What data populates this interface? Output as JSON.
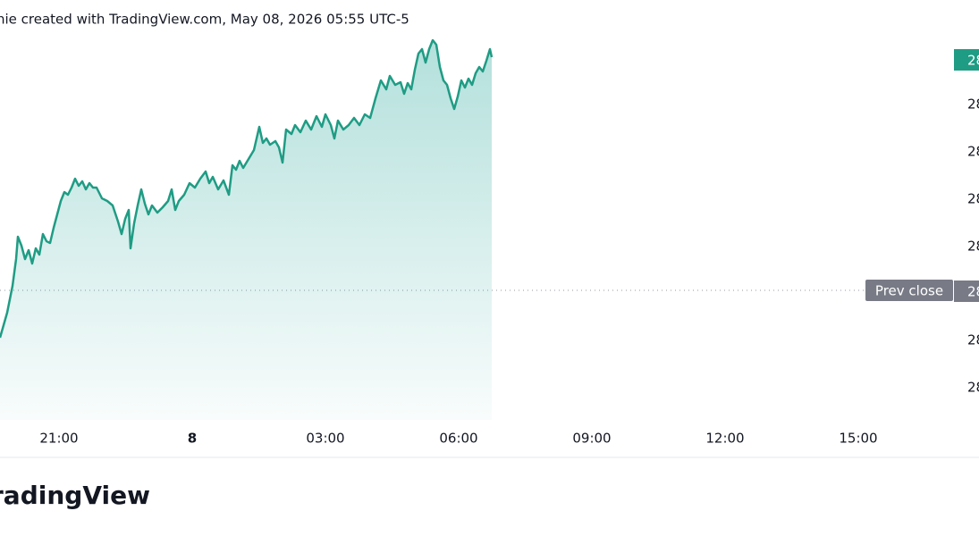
{
  "chart_data": {
    "type": "area",
    "title": "nie created with TradingView.com, May 08, 2026 05:55 UTC-5",
    "color": "#1f9c84",
    "xlim": [
      0,
      1065
    ],
    "ylim": [
      0,
      430
    ],
    "xticks": [
      {
        "value": 66,
        "label": "21:00"
      },
      {
        "value": 215,
        "label": "8"
      },
      {
        "value": 364,
        "label": "03:00"
      },
      {
        "value": 513,
        "label": "06:00"
      },
      {
        "value": 662,
        "label": "09:00"
      },
      {
        "value": 811,
        "label": "12:00"
      },
      {
        "value": 960,
        "label": "15:00"
      }
    ],
    "y_axis_labels": [
      "28",
      "28",
      "28",
      "28",
      "28",
      "28",
      "28",
      "28"
    ],
    "prev_close": {
      "label": "Prev close",
      "value": 145
    },
    "x": [
      0,
      8,
      14,
      18,
      20,
      24,
      28,
      32,
      36,
      40,
      44,
      48,
      52,
      56,
      60,
      64,
      68,
      72,
      76,
      80,
      84,
      88,
      92,
      96,
      100,
      104,
      108,
      114,
      120,
      126,
      132,
      136,
      140,
      144,
      146,
      150,
      154,
      158,
      162,
      166,
      170,
      176,
      182,
      188,
      192,
      196,
      200,
      206,
      212,
      218,
      224,
      230,
      234,
      238,
      244,
      250,
      256,
      260,
      264,
      268,
      272,
      278,
      284,
      290,
      294,
      298,
      302,
      308,
      312,
      316,
      320,
      326,
      330,
      336,
      342,
      348,
      354,
      360,
      364,
      370,
      374,
      378,
      384,
      390,
      396,
      402,
      408,
      414,
      420,
      426,
      432,
      436,
      442,
      448,
      452,
      456,
      460,
      464,
      468,
      472,
      476,
      480,
      484,
      488,
      492,
      496,
      500,
      504,
      508,
      512,
      516,
      520,
      524,
      528,
      532,
      536,
      540,
      544,
      548,
      550
    ],
    "series": [
      {
        "values": [
          92,
          120,
          150,
          180,
          205,
          195,
          180,
          190,
          175,
          192,
          185,
          208,
          200,
          198,
          215,
          230,
          245,
          255,
          252,
          260,
          270,
          262,
          267,
          258,
          265,
          260,
          260,
          248,
          245,
          240,
          222,
          208,
          225,
          235,
          192,
          220,
          240,
          258,
          242,
          230,
          240,
          232,
          238,
          245,
          258,
          235,
          245,
          252,
          265,
          260,
          270,
          278,
          265,
          272,
          258,
          268,
          252,
          285,
          280,
          290,
          282,
          292,
          302,
          328,
          310,
          315,
          308,
          312,
          305,
          288,
          325,
          320,
          330,
          322,
          335,
          325,
          340,
          328,
          342,
          330,
          315,
          335,
          325,
          330,
          338,
          330,
          342,
          338,
          360,
          380,
          370,
          385,
          375,
          378,
          365,
          377,
          370,
          392,
          410,
          415,
          400,
          415,
          425,
          420,
          395,
          380,
          375,
          360,
          348,
          362,
          380,
          372,
          382,
          375,
          388,
          395,
          390,
          402,
          415,
          406
        ]
      }
    ]
  }
}
